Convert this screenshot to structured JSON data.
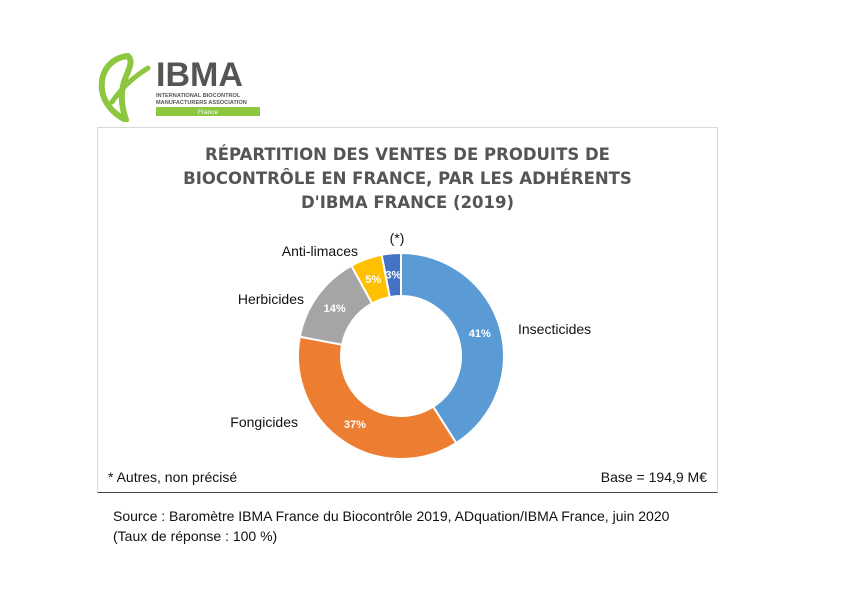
{
  "logo": {
    "name": "IBMA",
    "line1": "INTERNATIONAL BIOCONTROL",
    "line2": "MANUFACTURERS ASSOCIATION",
    "country": "France"
  },
  "chart_data": {
    "type": "pie",
    "title": "RÉPARTITION DES VENTES DE PRODUITS DE BIOCONTRÔLE EN FRANCE, PAR LES ADHÉRENTS D'IBMA FRANCE (2019)",
    "title_lines": [
      "RÉPARTITION DES VENTES DE PRODUITS DE",
      "BIOCONTRÔLE EN FRANCE, PAR LES ADHÉRENTS",
      "D'IBMA FRANCE (2019)"
    ],
    "donut": true,
    "unit": "%",
    "slices": [
      {
        "label": "Insecticides",
        "value": 41,
        "value_label": "41%",
        "color": "#5b9bd5"
      },
      {
        "label": "Fongicides",
        "value": 37,
        "value_label": "37%",
        "color": "#ed7d31"
      },
      {
        "label": "Herbicides",
        "value": 14,
        "value_label": "14%",
        "color": "#a5a5a5"
      },
      {
        "label": "Anti-limaces",
        "value": 5,
        "value_label": "5%",
        "color": "#ffc000"
      },
      {
        "label": "(*)",
        "value": 3,
        "value_label": "3%",
        "color": "#4472c4"
      }
    ],
    "footnote": "* Autres, non précisé",
    "base": "Base = 194,9 M€"
  },
  "source": {
    "line1": "Source : Baromètre IBMA France du Biocontrôle 2019, ADquation/IBMA France, juin 2020",
    "line2": "(Taux de réponse : 100 %)"
  }
}
